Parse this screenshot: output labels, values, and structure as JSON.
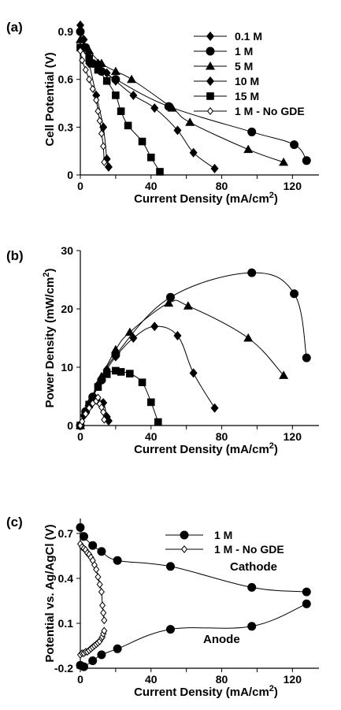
{
  "chart_data": [
    {
      "panel_label": "(a)",
      "type": "line",
      "xlabel": "Current Density (mA/cm²)",
      "ylabel": "Cell Potential (V)",
      "xlim": [
        0,
        135
      ],
      "ylim": [
        0,
        0.95
      ],
      "xticks": [
        0,
        20,
        40,
        60,
        80,
        100,
        120
      ],
      "xtick_labels": [
        "0",
        "",
        "40",
        "",
        "80",
        "",
        "120"
      ],
      "yticks": [
        0,
        0.3,
        0.6,
        0.9
      ],
      "ytick_labels": [
        "0",
        "0.3",
        "0.6",
        "0.9"
      ],
      "legend_position": "top-right",
      "series": [
        {
          "name": "0.1 M",
          "marker": "diamond",
          "x": [
            0,
            2,
            5,
            9,
            13,
            15,
            16
          ],
          "y": [
            0.94,
            0.85,
            0.7,
            0.5,
            0.3,
            0.1,
            0.05
          ]
        },
        {
          "name": "1 M",
          "marker": "circle",
          "x": [
            0,
            3,
            7,
            12,
            20,
            50,
            97,
            121,
            128
          ],
          "y": [
            0.9,
            0.8,
            0.7,
            0.65,
            0.6,
            0.43,
            0.27,
            0.19,
            0.09
          ]
        },
        {
          "name": "5 M",
          "marker": "triangle",
          "x": [
            0,
            5,
            12,
            20,
            29,
            52,
            62,
            95,
            115
          ],
          "y": [
            0.85,
            0.78,
            0.7,
            0.65,
            0.6,
            0.42,
            0.33,
            0.16,
            0.08
          ]
        },
        {
          "name": "10 M",
          "marker": "diamond",
          "x": [
            0,
            5,
            10,
            15,
            20,
            30,
            42,
            55,
            64,
            76
          ],
          "y": [
            0.8,
            0.74,
            0.7,
            0.64,
            0.59,
            0.5,
            0.42,
            0.28,
            0.14,
            0.04
          ]
        },
        {
          "name": "15 M",
          "marker": "square",
          "x": [
            0,
            5,
            10,
            15,
            20,
            23,
            27,
            35,
            40,
            45
          ],
          "y": [
            0.8,
            0.73,
            0.66,
            0.59,
            0.5,
            0.4,
            0.31,
            0.21,
            0.11,
            0.02
          ]
        },
        {
          "name": "1 M - No GDE",
          "marker": "open-diamond",
          "x": [
            0,
            1,
            3,
            5,
            7,
            9,
            10,
            11,
            12,
            13,
            13.5
          ],
          "y": [
            0.78,
            0.72,
            0.66,
            0.6,
            0.54,
            0.47,
            0.4,
            0.34,
            0.26,
            0.18,
            0.08
          ]
        }
      ]
    },
    {
      "panel_label": "(b)",
      "type": "line",
      "xlabel": "Current Density (mA/cm²)",
      "ylabel": "Power Density (mW/cm²)",
      "xlim": [
        0,
        135
      ],
      "ylim": [
        0,
        30
      ],
      "xticks": [
        0,
        20,
        40,
        60,
        80,
        100,
        120
      ],
      "xtick_labels": [
        "0",
        "",
        "40",
        "",
        "80",
        "",
        "120"
      ],
      "yticks": [
        0,
        10,
        20,
        30
      ],
      "ytick_labels": [
        "0",
        "10",
        "20",
        "30"
      ],
      "series": [
        {
          "name": "0.1 M",
          "marker": "diamond",
          "x": [
            0,
            2,
            5,
            9,
            13,
            15,
            16
          ],
          "y": [
            0,
            1.7,
            3.5,
            4.5,
            3.9,
            1.5,
            0.8
          ]
        },
        {
          "name": "1 M",
          "marker": "circle",
          "x": [
            0,
            3,
            7,
            12,
            20,
            51,
            97,
            121,
            128
          ],
          "y": [
            0,
            2.4,
            4.9,
            7.8,
            12.1,
            22,
            26.2,
            22.6,
            11.6
          ]
        },
        {
          "name": "5 M",
          "marker": "triangle",
          "x": [
            0,
            5,
            12,
            20,
            28,
            50,
            61,
            95,
            115
          ],
          "y": [
            0,
            3.9,
            8.4,
            13,
            16,
            21,
            20.5,
            15,
            8.6
          ]
        },
        {
          "name": "10 M",
          "marker": "diamond",
          "x": [
            0,
            5,
            10,
            15,
            20,
            30,
            42,
            55,
            64,
            76
          ],
          "y": [
            0,
            3.7,
            7,
            9.6,
            11.8,
            15,
            17,
            15.4,
            9,
            3
          ]
        },
        {
          "name": "15 M",
          "marker": "square",
          "x": [
            0,
            5,
            10,
            15,
            20,
            23,
            28,
            35,
            40,
            44
          ],
          "y": [
            0,
            3.6,
            6.6,
            8.8,
            9.4,
            9.2,
            8.9,
            7.4,
            4,
            0.6
          ]
        },
        {
          "name": "1 M - No GDE",
          "marker": "open-diamond",
          "x": [
            0,
            1,
            3,
            5,
            7,
            9,
            10,
            11,
            12,
            13,
            13.5
          ],
          "y": [
            0,
            0.7,
            2,
            3,
            3.8,
            4.2,
            4.8,
            3.7,
            3.1,
            2.3,
            1
          ]
        }
      ]
    },
    {
      "panel_label": "(c)",
      "type": "line",
      "xlabel": "Current Density (mA/cm²)",
      "ylabel": "Potential vs. Ag/AgCl (V)",
      "xlim": [
        0,
        135
      ],
      "ylim": [
        -0.2,
        0.8
      ],
      "xticks": [
        0,
        20,
        40,
        60,
        80,
        100,
        120
      ],
      "xtick_labels": [
        "0",
        "",
        "40",
        "",
        "80",
        "",
        "120"
      ],
      "yticks": [
        -0.2,
        0.1,
        0.4,
        0.7
      ],
      "ytick_labels": [
        "-0.2",
        "0.1",
        "0.4",
        "0.7"
      ],
      "legend_position": "top-right",
      "annotations": [
        "Cathode",
        "Anode"
      ],
      "series": [
        {
          "name": "1 M",
          "marker": "circle",
          "group": "cathode",
          "x": [
            0,
            2,
            7,
            12,
            21,
            51,
            97,
            128
          ],
          "y": [
            0.74,
            0.68,
            0.62,
            0.58,
            0.52,
            0.48,
            0.34,
            0.31
          ]
        },
        {
          "name": "1 M - No GDE",
          "marker": "open-diamond",
          "group": "cathode",
          "x": [
            0,
            1,
            2,
            3,
            4,
            5,
            6,
            7,
            8,
            9,
            10,
            11,
            12,
            12.5,
            13,
            13.5
          ],
          "y": [
            0.63,
            0.61,
            0.6,
            0.59,
            0.57,
            0.56,
            0.54,
            0.52,
            0.49,
            0.46,
            0.41,
            0.36,
            0.31,
            0.22,
            0.17,
            0.12
          ]
        },
        {
          "name": "",
          "marker": "circle",
          "group": "anode",
          "x": [
            0,
            2,
            7,
            12,
            21,
            51,
            97,
            128
          ],
          "y": [
            -0.18,
            -0.19,
            -0.15,
            -0.11,
            -0.07,
            0.06,
            0.08,
            0.23
          ]
        },
        {
          "name": "",
          "marker": "open-diamond",
          "group": "anode",
          "x": [
            0,
            1,
            2,
            3,
            4,
            5,
            6,
            7,
            8,
            9,
            10,
            11,
            12,
            12.5,
            13,
            13.5
          ],
          "y": [
            -0.11,
            -0.1,
            -0.1,
            -0.09,
            -0.09,
            -0.08,
            -0.07,
            -0.06,
            -0.05,
            -0.04,
            -0.03,
            -0.02,
            0.0,
            0.01,
            0.03,
            0.05
          ]
        }
      ]
    }
  ]
}
